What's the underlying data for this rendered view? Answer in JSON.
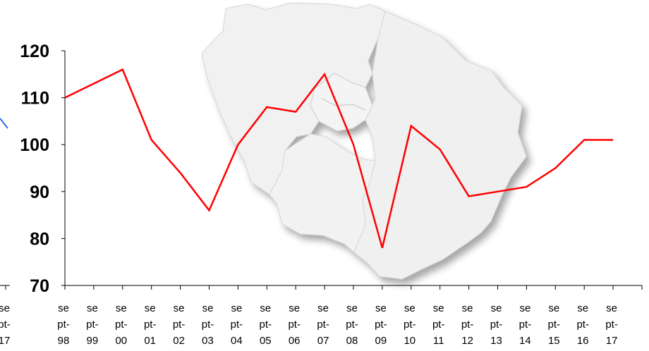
{
  "chart_data": {
    "type": "line",
    "title": "",
    "xlabel": "",
    "ylabel": "",
    "ylim": [
      70,
      120
    ],
    "yticks": [
      70,
      80,
      90,
      100,
      110,
      120
    ],
    "categories": [
      "sept-98",
      "sept-99",
      "sept-00",
      "sept-01",
      "sept-02",
      "sept-03",
      "sept-04",
      "sept-05",
      "sept-06",
      "sept-07",
      "sept-08",
      "sept-09",
      "sept-10",
      "sept-11",
      "sept-12",
      "sept-13",
      "sept-14",
      "sept-15",
      "sept-16",
      "sept-17"
    ],
    "tick_label_lines": [
      [
        "se",
        "pt-",
        "98"
      ],
      [
        "se",
        "pt-",
        "99"
      ],
      [
        "se",
        "pt-",
        "00"
      ],
      [
        "se",
        "pt-",
        "01"
      ],
      [
        "se",
        "pt-",
        "02"
      ],
      [
        "se",
        "pt-",
        "03"
      ],
      [
        "se",
        "pt-",
        "04"
      ],
      [
        "se",
        "pt-",
        "05"
      ],
      [
        "se",
        "pt-",
        "06"
      ],
      [
        "se",
        "pt-",
        "07"
      ],
      [
        "se",
        "pt-",
        "08"
      ],
      [
        "se",
        "pt-",
        "09"
      ],
      [
        "se",
        "pt-",
        "10"
      ],
      [
        "se",
        "pt-",
        "11"
      ],
      [
        "se",
        "pt-",
        "12"
      ],
      [
        "se",
        "pt-",
        "13"
      ],
      [
        "se",
        "pt-",
        "14"
      ],
      [
        "se",
        "pt-",
        "15"
      ],
      [
        "se",
        "pt-",
        "16"
      ],
      [
        "se",
        "pt-",
        "17"
      ]
    ],
    "left_partial_tick_lines": [
      "se",
      "pt-",
      "17"
    ],
    "series": [
      {
        "color": "#ff0000",
        "values": [
          110,
          113,
          116,
          101,
          94,
          86,
          100,
          108,
          107,
          115,
          100,
          78,
          104,
          99,
          89,
          90,
          91,
          95,
          101,
          101
        ]
      }
    ],
    "grid": false,
    "legend": "none",
    "background_image": "ile-de-france-map",
    "partial_line_color": "#3366ff"
  }
}
